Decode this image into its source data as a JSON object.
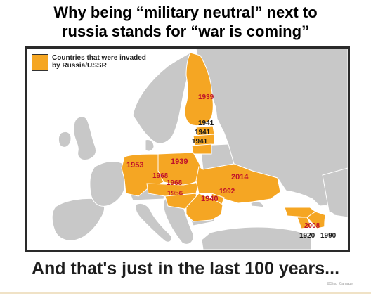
{
  "title": {
    "line1": "Why being “military neutral” next to",
    "line2": "russia stands for “war is coming”"
  },
  "map": {
    "legend_label": "Countries that were invaded by Russia/USSR",
    "colors": {
      "invaded": "#f5a623",
      "land": "#c8c8c8",
      "sea": "#ffffff",
      "border": "#ffffff"
    },
    "years": {
      "finland": "1939",
      "estonia": "1941",
      "latvia": "1941",
      "lithuania": "1941",
      "poland": "1939",
      "germany": "1953",
      "czechoslovakia_a": "1968",
      "czechoslovakia_b": "1968",
      "hungary": "1956",
      "ukraine": "2014",
      "moldova": "1992",
      "romania": "1940",
      "georgia": "2008",
      "azerbaijan": "1920",
      "armenia": "1990"
    }
  },
  "footer": "And that's just in the last 100 years...",
  "watermark": "@Stop_Carnage"
}
